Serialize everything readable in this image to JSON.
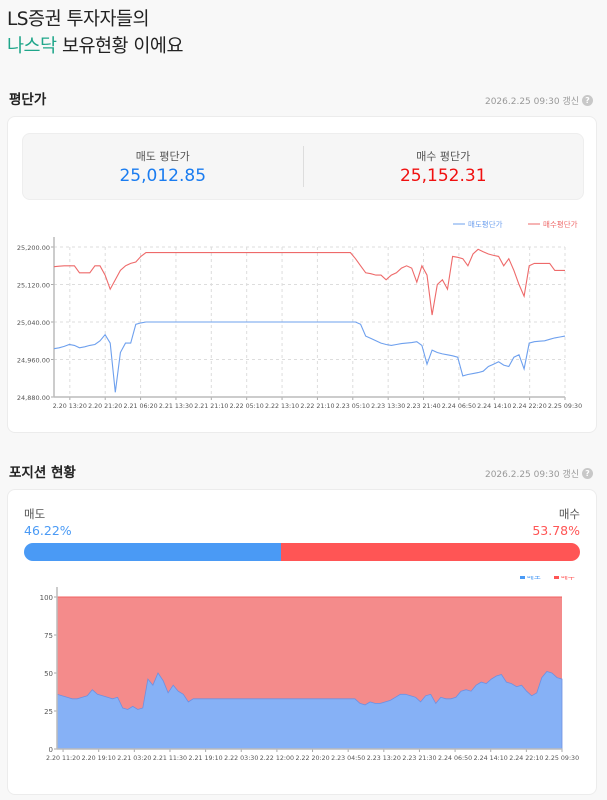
{
  "header": {
    "line1": "LS증권 투자자들의",
    "highlight": "나스닥",
    "line2_rest": " 보유현황 이에요"
  },
  "avg_section": {
    "title": "평단가",
    "updated": "2026.2.25 09:30 갱신",
    "help_icon": "question-circle-icon",
    "sell_label": "매도 평단가",
    "sell_value": "25,012.85",
    "buy_label": "매수 평단가",
    "buy_value": "25,152.31"
  },
  "position_section": {
    "title": "포지션 현황",
    "updated": "2026.2.25 09:30 갱신",
    "help_icon": "question-circle-icon",
    "sell_label": "매도",
    "sell_pct_text": "46.22%",
    "sell_pct": 46.22,
    "buy_label": "매수",
    "buy_pct_text": "53.78%",
    "buy_pct": 53.78
  },
  "colors": {
    "sell": "#4a9af5",
    "buy": "#ff5555",
    "sell_line": "#6ea0ee",
    "buy_line": "#ee6a6a",
    "accent": "#1fa68a"
  },
  "chart_data": [
    {
      "type": "line",
      "ylim": [
        24880,
        25200
      ],
      "yticks": [
        "25,200.00",
        "25,120.00",
        "25,040.00",
        "24,960.00",
        "24,880.00"
      ],
      "ytick_values": [
        25200,
        25120,
        25040,
        24960,
        24880
      ],
      "xticks": [
        "2.20 13:20",
        "2.20 21:20",
        "2.21 06:20",
        "2.21 13:30",
        "2.21 21:10",
        "2.22 05:10",
        "2.22 13:10",
        "2.22 21:10",
        "2.23 05:10",
        "2.23 13:30",
        "2.23 21:40",
        "2.24 06:50",
        "2.24 14:10",
        "2.24 22:20",
        "2.25 09:30"
      ],
      "grid": true,
      "legend": "top-right",
      "series": [
        {
          "name": "매도평단가",
          "values": [
            24983,
            24985,
            24988,
            24992,
            24990,
            24985,
            24987,
            24990,
            24992,
            25000,
            25013,
            24995,
            24890,
            24975,
            24995,
            24995,
            25035,
            25038,
            25040,
            25040,
            25040,
            25040,
            25040,
            25040,
            25040,
            25040,
            25040,
            25040,
            25040,
            25040,
            25040,
            25040,
            25040,
            25040,
            25040,
            25040,
            25040,
            25040,
            25040,
            25040,
            25040,
            25040,
            25040,
            25040,
            25040,
            25040,
            25040,
            25040,
            25040,
            25040,
            25040,
            25040,
            25040,
            25040,
            25040,
            25040,
            25040,
            25040,
            25040,
            25040,
            25035,
            25010,
            25005,
            25000,
            24995,
            24992,
            24990,
            24992,
            24994,
            24995,
            24996,
            24998,
            24990,
            24950,
            24980,
            24975,
            24972,
            24970,
            24968,
            24965,
            24925,
            24928,
            24930,
            24932,
            24935,
            24945,
            24950,
            24955,
            24948,
            24945,
            24965,
            24970,
            24940,
            24995,
            24998,
            24999,
            25000,
            25003,
            25006,
            25008,
            25010
          ]
        },
        {
          "name": "매수평단가",
          "values": [
            25158,
            25159,
            25160,
            25160,
            25160,
            25145,
            25145,
            25145,
            25160,
            25160,
            25140,
            25110,
            25130,
            25150,
            25160,
            25165,
            25168,
            25180,
            25188,
            25188,
            25188,
            25188,
            25188,
            25188,
            25188,
            25188,
            25188,
            25188,
            25188,
            25188,
            25188,
            25188,
            25188,
            25188,
            25188,
            25188,
            25188,
            25188,
            25188,
            25188,
            25188,
            25188,
            25188,
            25188,
            25188,
            25188,
            25188,
            25188,
            25188,
            25188,
            25188,
            25188,
            25188,
            25188,
            25188,
            25188,
            25188,
            25188,
            25188,
            25175,
            25160,
            25145,
            25143,
            25140,
            25140,
            25130,
            25140,
            25145,
            25155,
            25160,
            25155,
            25125,
            25160,
            25140,
            25055,
            25120,
            25130,
            25110,
            25180,
            25178,
            25175,
            25160,
            25185,
            25195,
            25190,
            25185,
            25182,
            25180,
            25160,
            25175,
            25150,
            25120,
            25095,
            25160,
            25165,
            25165,
            25165,
            25165,
            25150,
            25150,
            25150
          ]
        }
      ]
    },
    {
      "type": "area",
      "stacked": true,
      "ylim": [
        0,
        100
      ],
      "yticks": [
        "100",
        "75",
        "50",
        "25",
        "0"
      ],
      "ytick_values": [
        100,
        75,
        50,
        25,
        0
      ],
      "xticks": [
        "2.20 11:20",
        "2.20 19:10",
        "2.21 03:20",
        "2.21 11:30",
        "2.21 19:10",
        "2.22 03:30",
        "2.22 12:00",
        "2.22 20:20",
        "2.23 04:50",
        "2.23 13:20",
        "2.23 21:30",
        "2.24 06:50",
        "2.24 14:10",
        "2.24 22:10",
        "2.25 09:30"
      ],
      "legend": "top-right",
      "series": [
        {
          "name": "매도",
          "values": [
            36,
            35,
            34,
            33,
            33,
            34,
            35,
            39,
            36,
            35,
            34,
            33,
            34,
            27,
            26,
            28,
            26,
            27,
            46,
            42,
            50,
            45,
            37,
            42,
            38,
            36,
            31,
            33,
            33,
            33,
            33,
            33,
            33,
            33,
            33,
            33,
            33,
            33,
            33,
            33,
            33,
            33,
            33,
            33,
            33,
            33,
            33,
            33,
            33,
            33,
            33,
            33,
            33,
            33,
            33,
            33,
            33,
            33,
            33,
            33,
            30,
            29,
            31,
            30,
            30,
            31,
            32,
            34,
            36,
            36,
            35,
            34,
            31,
            35,
            36,
            30,
            34,
            33,
            33,
            34,
            38,
            39,
            38,
            42,
            44,
            43,
            46,
            48,
            49,
            44,
            43,
            41,
            42,
            38,
            35,
            37,
            47,
            51,
            50,
            47,
            46
          ]
        },
        {
          "name": "매수",
          "values": [
            64,
            65,
            66,
            67,
            67,
            66,
            65,
            61,
            64,
            65,
            66,
            67,
            66,
            73,
            74,
            72,
            74,
            73,
            54,
            58,
            50,
            55,
            63,
            58,
            62,
            64,
            69,
            67,
            67,
            67,
            67,
            67,
            67,
            67,
            67,
            67,
            67,
            67,
            67,
            67,
            67,
            67,
            67,
            67,
            67,
            67,
            67,
            67,
            67,
            67,
            67,
            67,
            67,
            67,
            67,
            67,
            67,
            67,
            67,
            67,
            70,
            71,
            69,
            70,
            70,
            69,
            68,
            66,
            64,
            64,
            65,
            66,
            69,
            65,
            64,
            70,
            66,
            67,
            67,
            66,
            62,
            61,
            62,
            58,
            56,
            57,
            54,
            52,
            51,
            56,
            57,
            59,
            58,
            62,
            65,
            63,
            53,
            49,
            50,
            53,
            54
          ]
        }
      ]
    }
  ]
}
